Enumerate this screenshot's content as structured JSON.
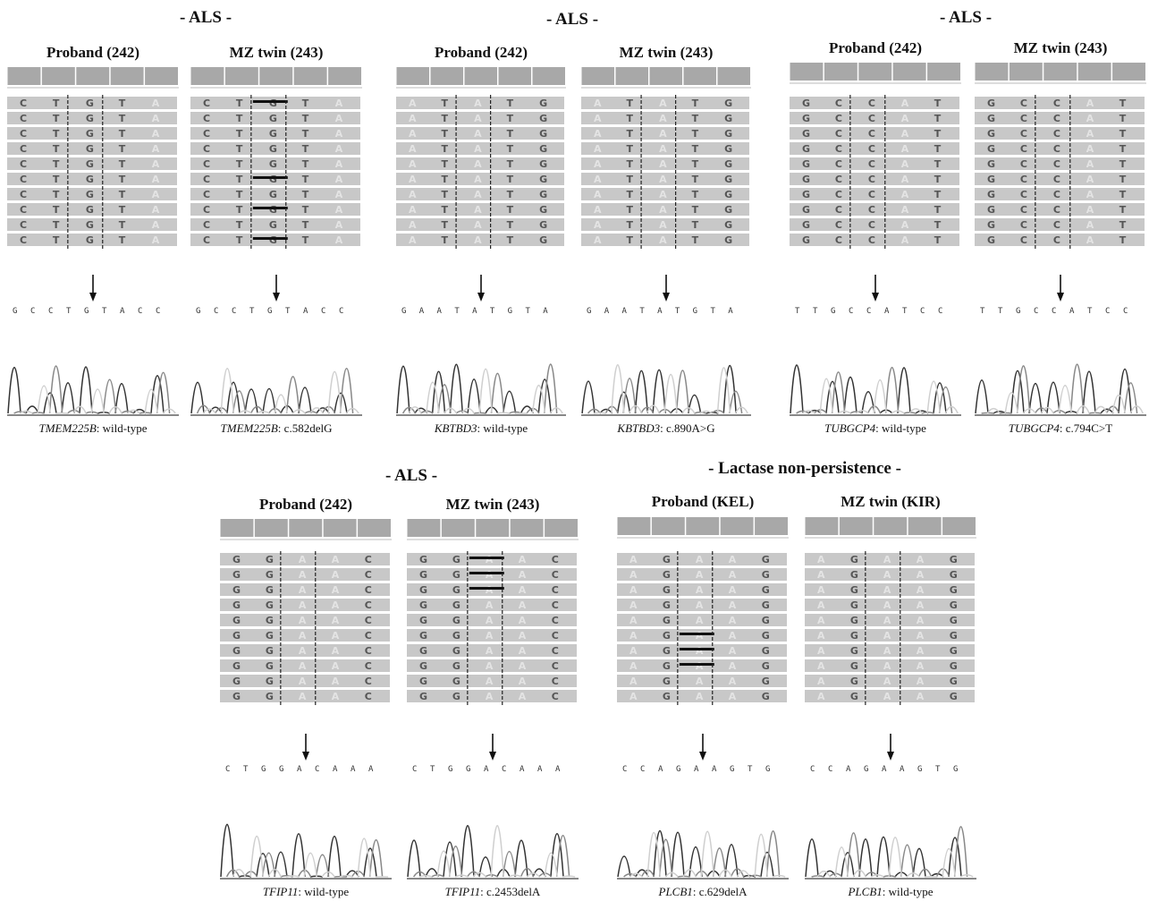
{
  "sections": [
    {
      "label": "- ALS -"
    },
    {
      "label": "- ALS -"
    },
    {
      "label": "- ALS -"
    },
    {
      "label": "- ALS -"
    },
    {
      "label": "- Lactase non-persistence -"
    }
  ],
  "panels": [
    {
      "section": 0,
      "header": "Proband (242)",
      "gene": "TMEM225B",
      "variant": "wild-type",
      "sequence": [
        "G",
        "C",
        "C",
        "T",
        "G",
        "T",
        "A",
        "C",
        "C"
      ],
      "columns": [
        "C",
        "T",
        "G",
        "T",
        "A"
      ],
      "deletion_rows": [],
      "faint": [
        "A"
      ]
    },
    {
      "section": 0,
      "header": "MZ twin (243)",
      "gene": "TMEM225B",
      "variant": "c.582delG",
      "sequence": [
        "G",
        "C",
        "C",
        "T",
        "G",
        "T",
        "A",
        "C",
        "C"
      ],
      "columns": [
        "C",
        "T",
        "G",
        "T",
        "A"
      ],
      "deletion_rows": [
        0,
        5,
        7,
        9
      ],
      "faint": [
        "A"
      ]
    },
    {
      "section": 1,
      "header": "Proband (242)",
      "gene": "KBTBD3",
      "variant": "wild-type",
      "sequence": [
        "G",
        "A",
        "A",
        "T",
        "A",
        "T",
        "G",
        "T",
        "A"
      ],
      "columns": [
        "A",
        "T",
        "A",
        "T",
        "G"
      ],
      "deletion_rows": [],
      "faint": [
        "A"
      ]
    },
    {
      "section": 1,
      "header": "MZ twin (243)",
      "gene": "KBTBD3",
      "variant": "c.890A>G",
      "sequence": [
        "G",
        "A",
        "A",
        "T",
        "A",
        "T",
        "G",
        "T",
        "A"
      ],
      "columns": [
        "A",
        "T",
        "A",
        "T",
        "G"
      ],
      "deletion_rows": [],
      "faint": [
        "A"
      ]
    },
    {
      "section": 2,
      "header": "Proband (242)",
      "gene": "TUBGCP4",
      "variant": "wild-type",
      "sequence": [
        "T",
        "T",
        "G",
        "C",
        "C",
        "A",
        "T",
        "C",
        "C"
      ],
      "columns": [
        "G",
        "C",
        "C",
        "A",
        "T"
      ],
      "deletion_rows": [],
      "faint": [
        "A"
      ]
    },
    {
      "section": 2,
      "header": "MZ twin (243)",
      "gene": "TUBGCP4",
      "variant": "c.794C>T",
      "sequence": [
        "T",
        "T",
        "G",
        "C",
        "C",
        "A",
        "T",
        "C",
        "C"
      ],
      "columns": [
        "G",
        "C",
        "C",
        "A",
        "T"
      ],
      "deletion_rows": [],
      "faint": [
        "A"
      ]
    },
    {
      "section": 3,
      "header": "Proband (242)",
      "gene": "TFIP11",
      "variant": "wild-type",
      "sequence": [
        "C",
        "T",
        "G",
        "G",
        "A",
        "C",
        "A",
        "A",
        "A"
      ],
      "columns": [
        "G",
        "G",
        "A",
        "A",
        "C"
      ],
      "deletion_rows": [],
      "faint": [
        "A"
      ]
    },
    {
      "section": 3,
      "header": "MZ twin (243)",
      "gene": "TFIP11",
      "variant": "c.2453delA",
      "sequence": [
        "C",
        "T",
        "G",
        "G",
        "A",
        "C",
        "A",
        "A",
        "A"
      ],
      "columns": [
        "G",
        "G",
        "A",
        "A",
        "C"
      ],
      "deletion_rows": [
        0,
        1,
        2
      ],
      "faint": [
        "A"
      ]
    },
    {
      "section": 4,
      "header": "Proband (KEL)",
      "gene": "PLCB1",
      "variant": "c.629delA",
      "sequence": [
        "C",
        "C",
        "A",
        "G",
        "A",
        "A",
        "G",
        "T",
        "G"
      ],
      "columns": [
        "A",
        "G",
        "A",
        "A",
        "G"
      ],
      "deletion_rows": [
        5,
        6,
        7
      ],
      "faint": [
        "A"
      ]
    },
    {
      "section": 4,
      "header": "MZ twin (KIR)",
      "gene": "PLCB1",
      "variant": "wild-type",
      "sequence": [
        "C",
        "C",
        "A",
        "G",
        "A",
        "A",
        "G",
        "T",
        "G"
      ],
      "columns": [
        "A",
        "G",
        "A",
        "A",
        "G"
      ],
      "deletion_rows": [],
      "faint": [
        "A"
      ]
    }
  ],
  "colors": {
    "read": "#c8c8c8",
    "coverage": "#a8a8a8",
    "base": "#555555",
    "faint_base": "#e4e4e4",
    "trace_dark": "#333333",
    "trace_mid": "#888888",
    "trace_light": "#cfcfcf"
  }
}
